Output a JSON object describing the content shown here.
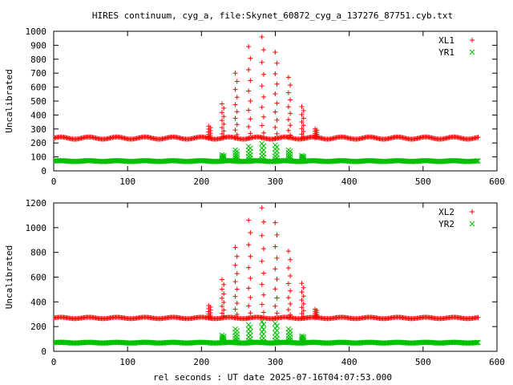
{
  "title": "HIRES continuum, cyg_a, file:Skynet_60872_cyg_a_137276_87751.cyb.txt",
  "xlabel": "rel seconds : UT date 2025-07-16T04:07:53.000",
  "colors": {
    "red": "#ff0000",
    "green": "#00c000",
    "axis": "#000000",
    "grid": "#a0a0a0"
  },
  "chart_data": [
    {
      "type": "scatter",
      "ylabel": "Uncalibrated",
      "xlim": [
        0,
        600
      ],
      "ylim": [
        0,
        1000
      ],
      "xticks": [
        0,
        100,
        200,
        300,
        400,
        500,
        600
      ],
      "yticks": [
        0,
        100,
        200,
        300,
        400,
        500,
        600,
        700,
        800,
        900,
        1000
      ],
      "grid": false,
      "legend_position": "top-right",
      "series": [
        {
          "name": "XL1",
          "marker": "plus",
          "color": "#ff0000",
          "baseline": 235,
          "baseline_amp": 8,
          "baseline_period": 38,
          "spikes": [
            {
              "x": 211,
              "peak": 320
            },
            {
              "x": 229,
              "peak": 480
            },
            {
              "x": 247,
              "peak": 700
            },
            {
              "x": 265,
              "peak": 890
            },
            {
              "x": 283,
              "peak": 960
            },
            {
              "x": 301,
              "peak": 850
            },
            {
              "x": 319,
              "peak": 670
            },
            {
              "x": 337,
              "peak": 460
            },
            {
              "x": 355,
              "peak": 300
            }
          ]
        },
        {
          "name": "YR1",
          "marker": "cross",
          "color": "#00c000",
          "baseline": 70,
          "baseline_amp": 3,
          "baseline_period": 38,
          "spikes": [
            {
              "x": 229,
              "peak": 115
            },
            {
              "x": 247,
              "peak": 150
            },
            {
              "x": 265,
              "peak": 175
            },
            {
              "x": 283,
              "peak": 195
            },
            {
              "x": 301,
              "peak": 185
            },
            {
              "x": 319,
              "peak": 150
            },
            {
              "x": 337,
              "peak": 110
            }
          ]
        }
      ]
    },
    {
      "type": "scatter",
      "ylabel": "Uncalibrated",
      "xlim": [
        0,
        600
      ],
      "ylim": [
        0,
        1200
      ],
      "xticks": [
        0,
        100,
        200,
        300,
        400,
        500,
        600
      ],
      "yticks": [
        0,
        200,
        400,
        600,
        800,
        1000,
        1200
      ],
      "grid": false,
      "legend_position": "top-right",
      "series": [
        {
          "name": "XL2",
          "marker": "plus",
          "color": "#ff0000",
          "baseline": 270,
          "baseline_amp": 6,
          "baseline_period": 38,
          "spikes": [
            {
              "x": 211,
              "peak": 370
            },
            {
              "x": 229,
              "peak": 580
            },
            {
              "x": 247,
              "peak": 840
            },
            {
              "x": 265,
              "peak": 1060
            },
            {
              "x": 283,
              "peak": 1160
            },
            {
              "x": 301,
              "peak": 1040
            },
            {
              "x": 319,
              "peak": 810
            },
            {
              "x": 337,
              "peak": 550
            },
            {
              "x": 355,
              "peak": 340
            }
          ]
        },
        {
          "name": "YR2",
          "marker": "cross",
          "color": "#00c000",
          "baseline": 70,
          "baseline_amp": 3,
          "baseline_period": 38,
          "spikes": [
            {
              "x": 229,
              "peak": 130
            },
            {
              "x": 247,
              "peak": 180
            },
            {
              "x": 265,
              "peak": 215
            },
            {
              "x": 283,
              "peak": 240
            },
            {
              "x": 301,
              "peak": 225
            },
            {
              "x": 319,
              "peak": 180
            },
            {
              "x": 337,
              "peak": 125
            }
          ]
        }
      ]
    }
  ]
}
